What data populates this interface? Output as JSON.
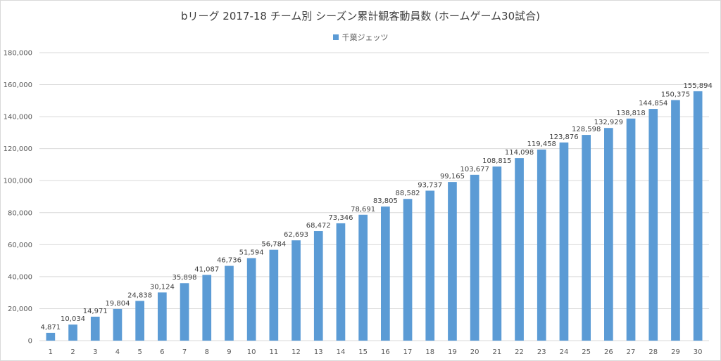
{
  "colors": {
    "bar": "#5b9bd5",
    "grid": "#d9d9d9"
  },
  "chart_data": {
    "type": "bar",
    "title": "bリーグ 2017-18 チーム別 シーズン累計観客動員数 (ホームゲーム30試合)",
    "categories": [
      "1",
      "2",
      "3",
      "4",
      "5",
      "6",
      "7",
      "8",
      "9",
      "10",
      "11",
      "12",
      "13",
      "14",
      "15",
      "16",
      "17",
      "18",
      "19",
      "20",
      "21",
      "22",
      "23",
      "24",
      "25",
      "26",
      "27",
      "28",
      "29",
      "30"
    ],
    "series": [
      {
        "name": "千葉ジェッツ",
        "values": [
          4871,
          10034,
          14971,
          19804,
          24838,
          30124,
          35898,
          41087,
          46736,
          51594,
          56784,
          62693,
          68472,
          73346,
          78691,
          83805,
          88582,
          93737,
          99165,
          103677,
          108815,
          114098,
          119458,
          123876,
          128598,
          132929,
          138818,
          144854,
          150375,
          155894
        ],
        "labels": [
          "4,871",
          "10,034",
          "14,971",
          "19,804",
          "24,838",
          "30,124",
          "35,898",
          "41,087",
          "46,736",
          "51,594",
          "56,784",
          "62,693",
          "68,472",
          "73,346",
          "78,691",
          "83,805",
          "88,582",
          "93,737",
          "99,165",
          "103,677",
          "108,815",
          "114,098",
          "119,458",
          "123,876",
          "128,598",
          "132,929",
          "138,818",
          "144,854",
          "150,375",
          "155,894"
        ]
      }
    ],
    "ylim": [
      0,
      180000
    ],
    "yticks": [
      0,
      20000,
      40000,
      60000,
      80000,
      100000,
      120000,
      140000,
      160000,
      180000
    ],
    "ytick_labels": [
      "0",
      "20,000",
      "40,000",
      "60,000",
      "80,000",
      "100,000",
      "120,000",
      "140,000",
      "160,000",
      "180,000"
    ],
    "grid": true,
    "legend": "top-center"
  }
}
